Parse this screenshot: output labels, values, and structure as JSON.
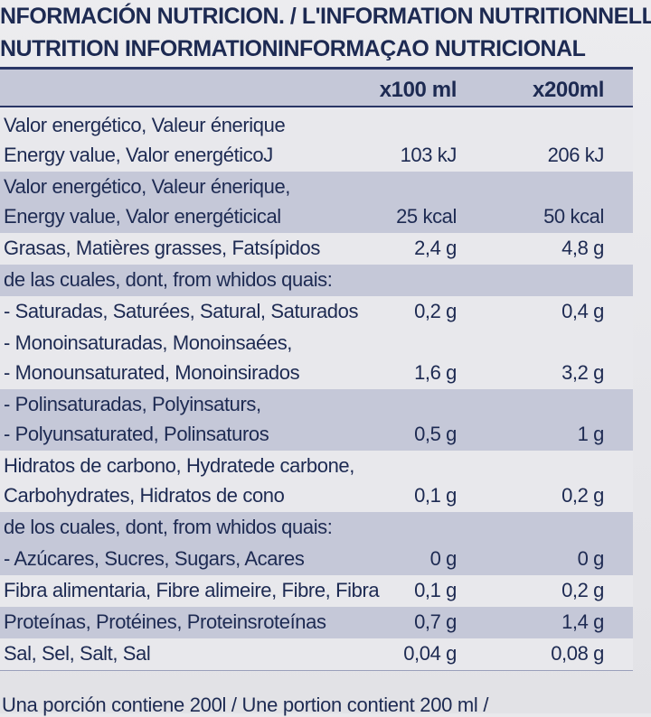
{
  "title": {
    "line1": "NFORMACIÓN NUTRICION. / L'INFORMATION NUTRITIONNELLE /",
    "line2": "NUTRITION INFORMATIONINFORMAÇAO NUTRICIONAL"
  },
  "columns": {
    "per100": "x100 ml",
    "per200": "x200ml"
  },
  "rows": [
    {
      "lines": [
        "Valor energético, Valeur énerique",
        "Energy value, Valor energéticoJ"
      ],
      "v1": "103 kJ",
      "v2": "206 kJ",
      "band": "light"
    },
    {
      "lines": [
        "Valor energético, Valeur énerique,",
        "Energy value, Valor energéticical"
      ],
      "v1": "25 kcal",
      "v2": "50 kcal",
      "band": "dark"
    },
    {
      "lines": [
        "Grasas, Matières grasses, Fatsípidos"
      ],
      "v1": "2,4 g",
      "v2": "4,8 g",
      "band": "light"
    },
    {
      "lines": [
        "de las cuales, dont, from whidos quais:"
      ],
      "v1": "",
      "v2": "",
      "band": "dark"
    },
    {
      "lines": [
        "- Saturadas, Saturées, Satural, Saturados"
      ],
      "v1": "0,2 g",
      "v2": "0,4 g",
      "band": "light"
    },
    {
      "lines": [
        "- Monoinsaturadas, Monoinsaées,",
        "- Monounsaturated, Monoinsirados"
      ],
      "v1": "1,6 g",
      "v2": "3,2 g",
      "band": "light"
    },
    {
      "lines": [
        "- Polinsaturadas, Polyinsaturs,",
        "- Polyunsaturated, Polinsaturos"
      ],
      "v1": "0,5 g",
      "v2": "1 g",
      "band": "dark"
    },
    {
      "lines": [
        "Hidratos de carbono, Hydratede carbone,",
        "Carbohydrates, Hidratos de cono"
      ],
      "v1": "0,1 g",
      "v2": "0,2 g",
      "band": "light"
    },
    {
      "lines": [
        "de los cuales, dont, from whidos quais:"
      ],
      "v1": "",
      "v2": "",
      "band": "dark"
    },
    {
      "lines": [
        "- Azúcares, Sucres, Sugars, Acares"
      ],
      "v1": "0 g",
      "v2": "0 g",
      "band": "dark"
    },
    {
      "lines": [
        "Fibra alimentaria, Fibre alimeire, Fibre, Fibra"
      ],
      "v1": "0,1 g",
      "v2": "0,2 g",
      "band": "light"
    },
    {
      "lines": [
        "Proteínas, Protéines, Proteinsroteínas"
      ],
      "v1": "0,7 g",
      "v2": "1,4 g",
      "band": "dark"
    },
    {
      "lines": [
        "Sal, Sel, Salt, Sal"
      ],
      "v1": "0,04 g",
      "v2": "0,08 g",
      "band": "light"
    }
  ],
  "footer": "Una porción contiene 200l / Une portion contient 200 ml /"
}
